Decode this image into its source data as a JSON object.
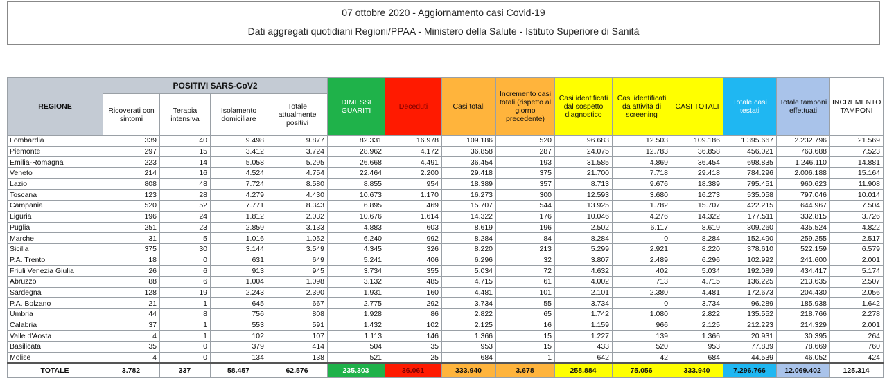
{
  "header": {
    "title": "07 ottobre 2020 - Aggiornamento casi Covid-19",
    "subtitle": "Dati aggregati quotidiani Regioni/PPAA - Ministero della Salute - Istituto Superiore di Sanità"
  },
  "table": {
    "group_header": "POSITIVI SARS-CoV2",
    "columns": [
      "REGIONE",
      "Ricoverati con sintomi",
      "Terapia intensiva",
      "Isolamento domiciliare",
      "Totale attualmente positivi",
      "DIMESSI GUARITI",
      "Deceduti",
      "Casi totali",
      "Incremento casi totali (rispetto al giorno precedente)",
      "Casi identificati dal sospetto diagnostico",
      "Casi identificati da attività di screening",
      "CASI TOTALI",
      "Totale casi testati",
      "Totale tamponi effettuati",
      "INCREMENTO TAMPONI"
    ],
    "rows": [
      [
        "Lombardia",
        "339",
        "40",
        "9.498",
        "9.877",
        "82.331",
        "16.978",
        "109.186",
        "520",
        "96.683",
        "12.503",
        "109.186",
        "1.395.667",
        "2.232.796",
        "21.569"
      ],
      [
        "Piemonte",
        "297",
        "15",
        "3.412",
        "3.724",
        "28.962",
        "4.172",
        "36.858",
        "287",
        "24.075",
        "12.783",
        "36.858",
        "456.021",
        "763.688",
        "7.523"
      ],
      [
        "Emilia-Romagna",
        "223",
        "14",
        "5.058",
        "5.295",
        "26.668",
        "4.491",
        "36.454",
        "193",
        "31.585",
        "4.869",
        "36.454",
        "698.835",
        "1.246.110",
        "14.881"
      ],
      [
        "Veneto",
        "214",
        "16",
        "4.524",
        "4.754",
        "22.464",
        "2.200",
        "29.418",
        "375",
        "21.700",
        "7.718",
        "29.418",
        "784.296",
        "2.006.188",
        "15.164"
      ],
      [
        "Lazio",
        "808",
        "48",
        "7.724",
        "8.580",
        "8.855",
        "954",
        "18.389",
        "357",
        "8.713",
        "9.676",
        "18.389",
        "795.451",
        "960.623",
        "11.908"
      ],
      [
        "Toscana",
        "123",
        "28",
        "4.279",
        "4.430",
        "10.673",
        "1.170",
        "16.273",
        "300",
        "12.593",
        "3.680",
        "16.273",
        "535.058",
        "797.046",
        "10.014"
      ],
      [
        "Campania",
        "520",
        "52",
        "7.771",
        "8.343",
        "6.895",
        "469",
        "15.707",
        "544",
        "13.925",
        "1.782",
        "15.707",
        "422.215",
        "644.967",
        "7.504"
      ],
      [
        "Liguria",
        "196",
        "24",
        "1.812",
        "2.032",
        "10.676",
        "1.614",
        "14.322",
        "176",
        "10.046",
        "4.276",
        "14.322",
        "177.511",
        "332.815",
        "3.726"
      ],
      [
        "Puglia",
        "251",
        "23",
        "2.859",
        "3.133",
        "4.883",
        "603",
        "8.619",
        "196",
        "2.502",
        "6.117",
        "8.619",
        "309.260",
        "435.524",
        "4.822"
      ],
      [
        "Marche",
        "31",
        "5",
        "1.016",
        "1.052",
        "6.240",
        "992",
        "8.284",
        "84",
        "8.284",
        "0",
        "8.284",
        "152.490",
        "259.255",
        "2.517"
      ],
      [
        "Sicilia",
        "375",
        "30",
        "3.144",
        "3.549",
        "4.345",
        "326",
        "8.220",
        "213",
        "5.299",
        "2.921",
        "8.220",
        "378.610",
        "522.159",
        "6.579"
      ],
      [
        "P.A. Trento",
        "18",
        "0",
        "631",
        "649",
        "5.241",
        "406",
        "6.296",
        "32",
        "3.807",
        "2.489",
        "6.296",
        "102.992",
        "241.600",
        "2.001"
      ],
      [
        "Friuli Venezia Giulia",
        "26",
        "6",
        "913",
        "945",
        "3.734",
        "355",
        "5.034",
        "72",
        "4.632",
        "402",
        "5.034",
        "192.089",
        "434.417",
        "5.174"
      ],
      [
        "Abruzzo",
        "88",
        "6",
        "1.004",
        "1.098",
        "3.132",
        "485",
        "4.715",
        "61",
        "4.002",
        "713",
        "4.715",
        "136.225",
        "213.635",
        "2.507"
      ],
      [
        "Sardegna",
        "128",
        "19",
        "2.243",
        "2.390",
        "1.931",
        "160",
        "4.481",
        "101",
        "2.101",
        "2.380",
        "4.481",
        "172.673",
        "204.430",
        "2.056"
      ],
      [
        "P.A. Bolzano",
        "21",
        "1",
        "645",
        "667",
        "2.775",
        "292",
        "3.734",
        "55",
        "3.734",
        "0",
        "3.734",
        "96.289",
        "185.938",
        "1.642"
      ],
      [
        "Umbria",
        "44",
        "8",
        "756",
        "808",
        "1.928",
        "86",
        "2.822",
        "65",
        "1.742",
        "1.080",
        "2.822",
        "135.552",
        "218.766",
        "2.278"
      ],
      [
        "Calabria",
        "37",
        "1",
        "553",
        "591",
        "1.432",
        "102",
        "2.125",
        "16",
        "1.159",
        "966",
        "2.125",
        "212.223",
        "214.329",
        "2.001"
      ],
      [
        "Valle d'Aosta",
        "4",
        "1",
        "102",
        "107",
        "1.113",
        "146",
        "1.366",
        "15",
        "1.227",
        "139",
        "1.366",
        "20.931",
        "30.395",
        "264"
      ],
      [
        "Basilicata",
        "35",
        "0",
        "379",
        "414",
        "504",
        "35",
        "953",
        "15",
        "433",
        "520",
        "953",
        "77.839",
        "78.669",
        "760"
      ],
      [
        "Molise",
        "4",
        "0",
        "134",
        "138",
        "521",
        "25",
        "684",
        "1",
        "642",
        "42",
        "684",
        "44.539",
        "46.052",
        "424"
      ]
    ],
    "total": [
      "TOTALE",
      "3.782",
      "337",
      "58.457",
      "62.576",
      "235.303",
      "36.061",
      "333.940",
      "3.678",
      "258.884",
      "75.056",
      "333.940",
      "7.296.766",
      "12.069.402",
      "125.314"
    ]
  }
}
